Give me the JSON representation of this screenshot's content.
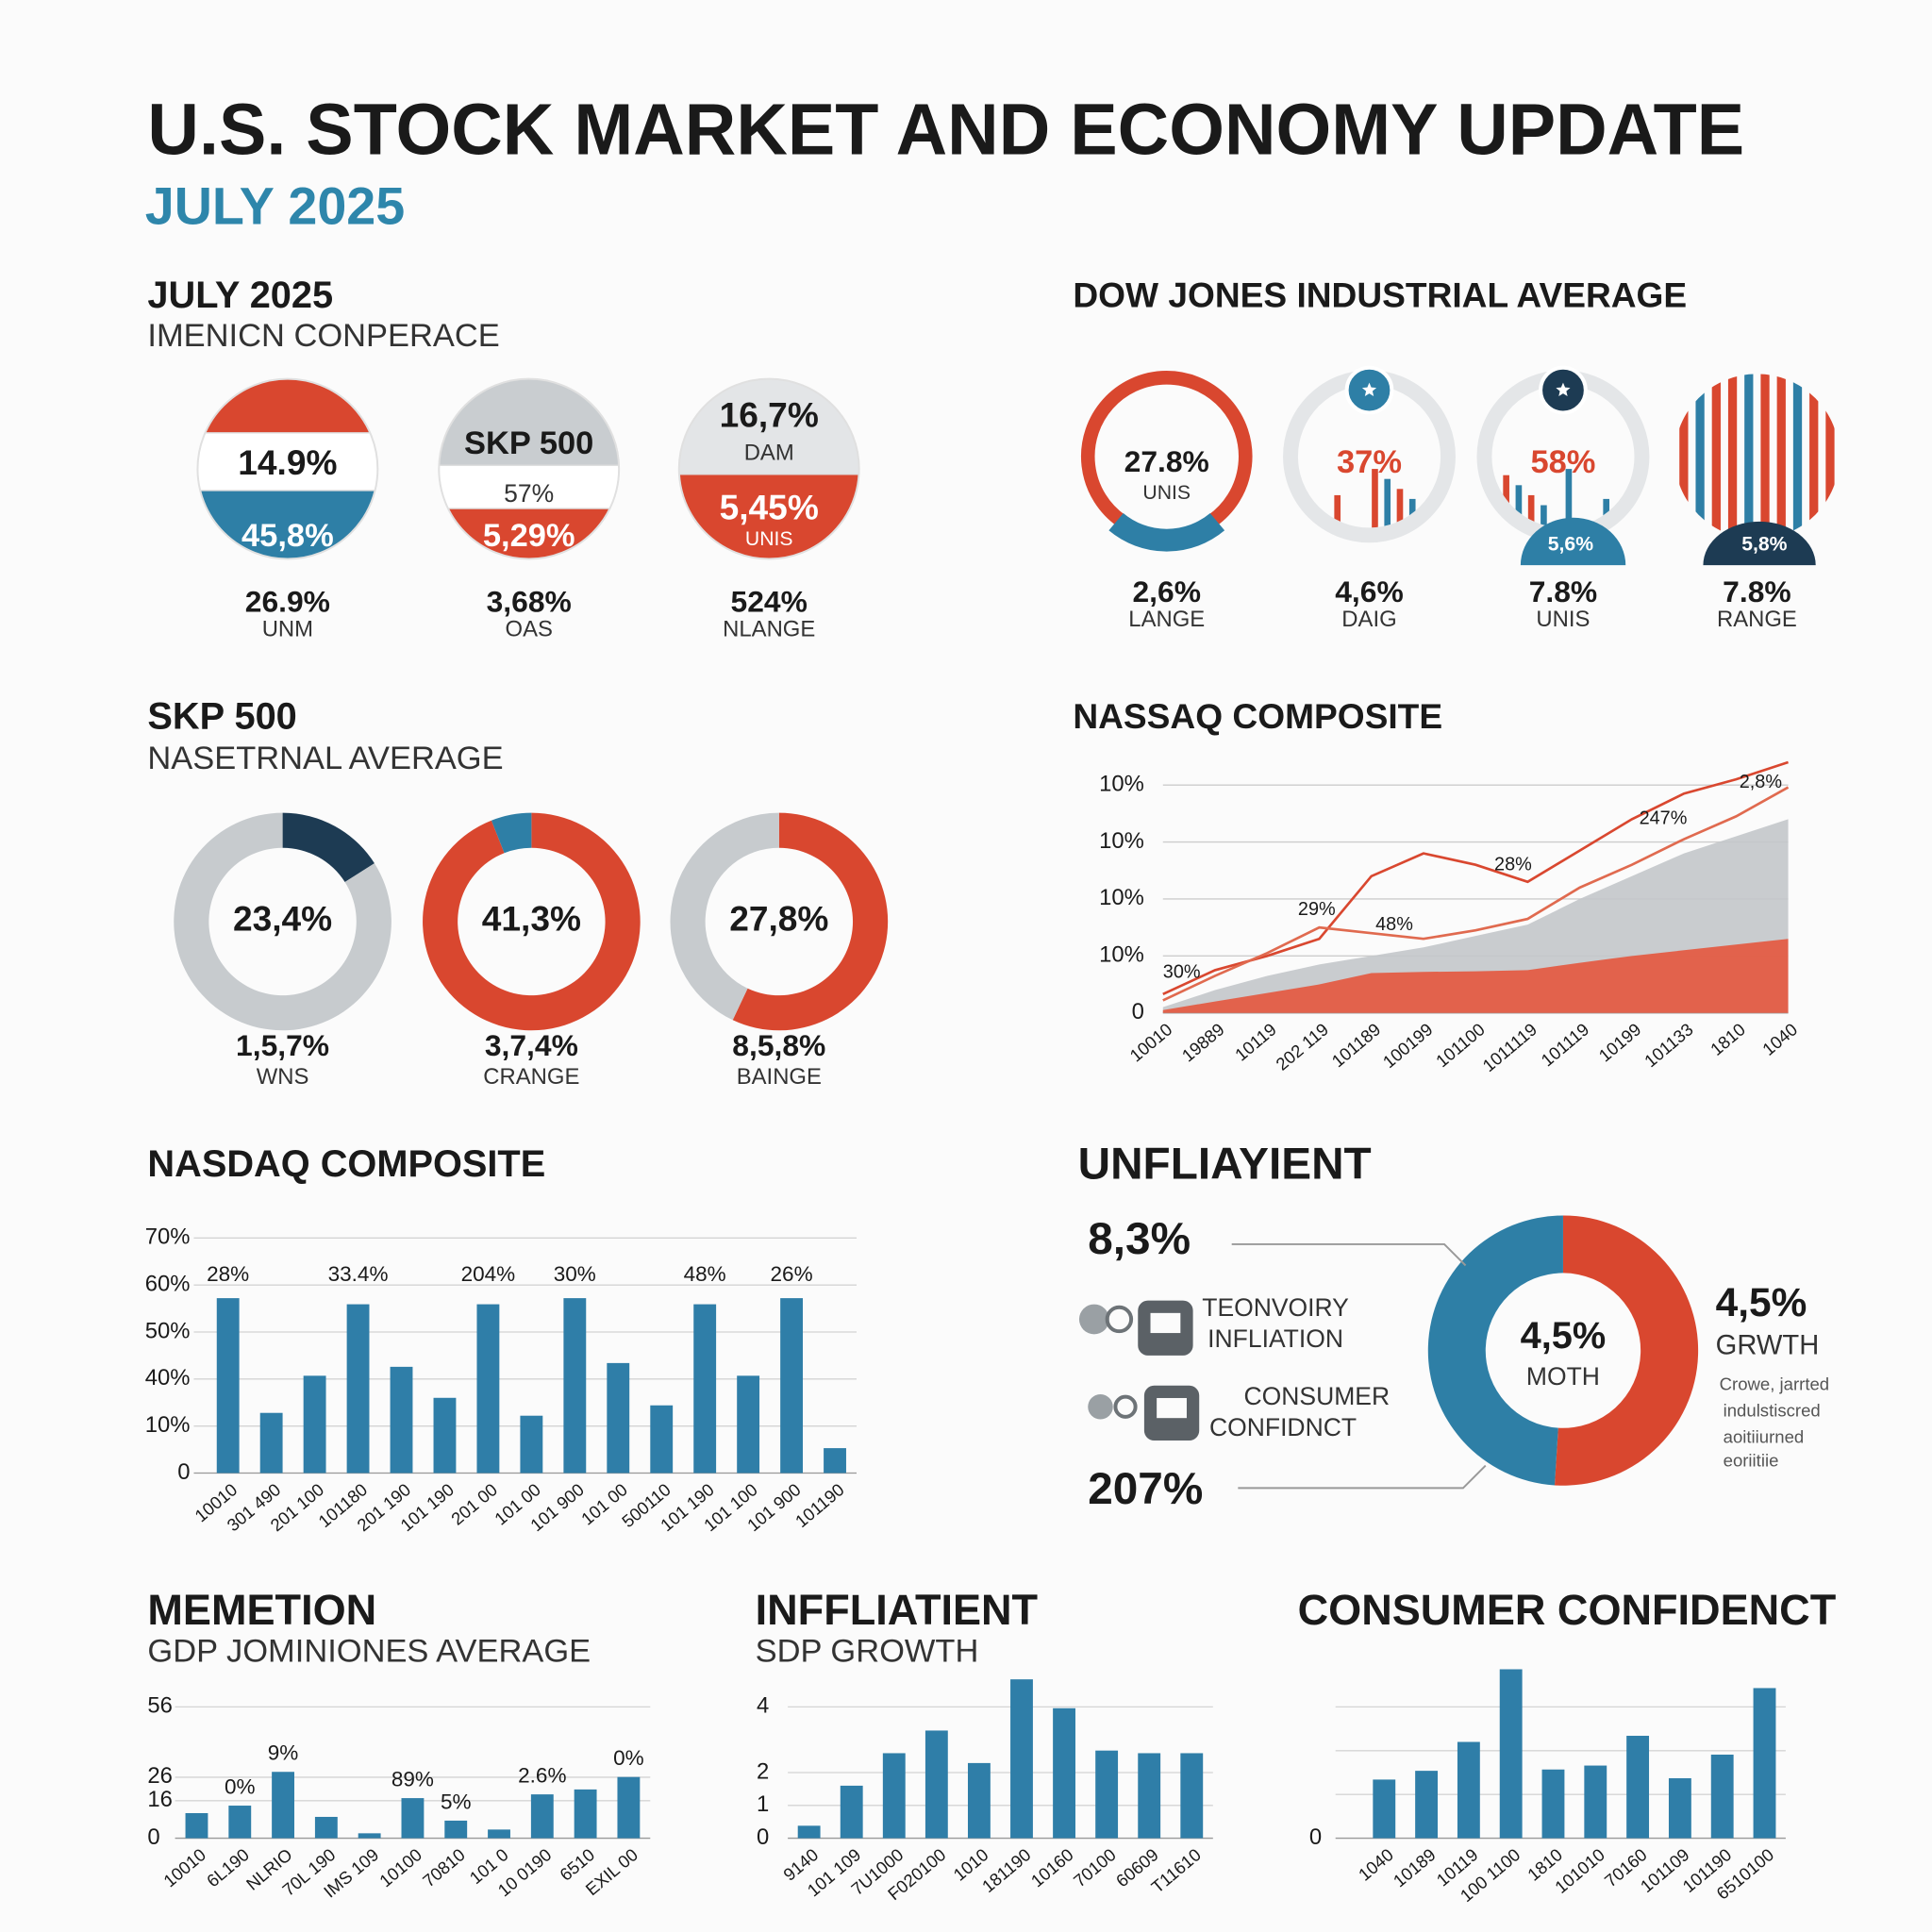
{
  "header": {
    "title": "U.S. STOCK MARKET AND ECONOMY UPDATE",
    "subtitle": "JULY 2025"
  },
  "chart_data": [
    {
      "type": "badges",
      "title": "JULY 2025",
      "subtitle": "IMENICN CONPERACE",
      "items": [
        {
          "texts": [
            "14.9%",
            "45,8%"
          ],
          "value": "26.9%",
          "label": "UNM",
          "colors": [
            "#d9472f",
            "#ffffff",
            "#2e7fa6"
          ]
        },
        {
          "texts": [
            "SKP 500",
            "57%",
            "5,29%"
          ],
          "value": "3,68%",
          "label": "OAS",
          "colors": [
            "#c9cdd0",
            "#ffffff",
            "#d9472f"
          ]
        },
        {
          "texts": [
            "16,7%",
            "DAM",
            "5,45%",
            "UNIS"
          ],
          "value": "524%",
          "label": "NLANGE",
          "colors": [
            "#e3e5e7",
            "#d9472f"
          ]
        }
      ]
    },
    {
      "type": "gauges",
      "title": "DOW JONES INDUSTRIAL AVERAGE",
      "items": [
        {
          "texts": [
            "27.8%",
            "UNIS"
          ],
          "value": "2,6%",
          "label": "LANGE"
        },
        {
          "texts": [
            "37%"
          ],
          "value": "4,6%",
          "label": "DAIG"
        },
        {
          "texts": [
            "58%",
            "5,6%"
          ],
          "value": "7.8%",
          "label": "UNIS"
        },
        {
          "texts": [
            "5,8%"
          ],
          "value": "7.8%",
          "label": "RANGE"
        }
      ]
    },
    {
      "type": "donut",
      "title": "SKP 500",
      "subtitle": "NASETRNAL AVERAGE",
      "items": [
        {
          "center": "23,4%",
          "value": "1,5,7%",
          "label": "WNS",
          "values": [
            16,
            84
          ],
          "colors": [
            "#1d3b53",
            "#c7cbce"
          ]
        },
        {
          "center": "41,3%",
          "value": "3,7,4%",
          "label": "CRANGE",
          "values": [
            94,
            6
          ],
          "colors": [
            "#d9472f",
            "#2e7fa6"
          ]
        },
        {
          "center": "27,8%",
          "value": "8,5,8%",
          "label": "BAINGE",
          "values": [
            57,
            43
          ],
          "colors": [
            "#d9472f",
            "#c7cbce"
          ]
        }
      ]
    },
    {
      "type": "line",
      "title": "NASSAQ COMPOSITE",
      "categories": [
        "10010",
        "19889",
        "10119",
        "202 119",
        "101189",
        "100199",
        "101100",
        "1011119",
        "101119",
        "10199",
        "101133",
        "1810",
        "1040"
      ],
      "ylim": [
        0,
        4.5
      ],
      "yticks": [
        0,
        {
          "value": 1,
          "label": "10%"
        },
        {
          "value": 2,
          "label": "10%"
        },
        {
          "value": 3,
          "label": "10%"
        },
        {
          "value": 4,
          "label": "10%"
        }
      ],
      "grid": true,
      "series": [
        {
          "style": "area",
          "color": "#c3c7ca",
          "values": [
            0.1,
            0.4,
            0.65,
            0.85,
            1.0,
            1.15,
            1.35,
            1.55,
            2.0,
            2.4,
            2.8,
            3.1,
            3.4
          ]
        },
        {
          "style": "area",
          "color": "#e4573d",
          "values": [
            0.05,
            0.2,
            0.35,
            0.5,
            0.7,
            0.72,
            0.73,
            0.75,
            0.88,
            1.0,
            1.1,
            1.2,
            1.3
          ]
        },
        {
          "style": "line",
          "color": "#d9472f",
          "values": [
            0.33,
            0.75,
            1.0,
            1.3,
            2.4,
            2.8,
            2.6,
            2.3,
            2.85,
            3.4,
            3.85,
            4.1,
            4.4
          ]
        },
        {
          "style": "line",
          "color": "#e06a4f",
          "values": [
            0.22,
            0.65,
            1.05,
            1.5,
            1.4,
            1.3,
            1.45,
            1.65,
            2.2,
            2.6,
            3.05,
            3.45,
            3.96
          ]
        }
      ],
      "annotations": [
        "30%",
        "29%",
        "48%",
        "28%",
        "247%",
        "2,8%"
      ]
    },
    {
      "type": "bar",
      "title": "NASDAQ COMPOSITE",
      "categories": [
        "10010",
        "301 490",
        "201 100",
        "101180",
        "201 190",
        "101 190",
        "201 00",
        "101 00",
        "101 900",
        "101 00",
        "500110",
        "101 190",
        "101 100",
        "101 900",
        "101190"
      ],
      "values": [
        3.72,
        1.28,
        2.07,
        3.59,
        2.26,
        1.6,
        3.59,
        1.22,
        3.72,
        2.34,
        1.44,
        3.59,
        2.07,
        3.72,
        0.53
      ],
      "color": "#2f7ea8",
      "ylim": [
        0,
        5
      ],
      "yticks": [
        0,
        {
          "value": 1,
          "label": "10%"
        },
        {
          "value": 2,
          "label": "40%"
        },
        {
          "value": 3,
          "label": "50%"
        },
        {
          "value": 4,
          "label": "60%"
        },
        {
          "value": 5,
          "label": "70%"
        }
      ],
      "grid": true,
      "annotations": [
        "28%",
        "33.4%",
        "204%",
        "30%",
        "48%",
        "26%"
      ]
    },
    {
      "type": "callout",
      "title": "UNFLIAYIENT",
      "values": [
        51,
        49
      ],
      "colors": [
        "#d9472f",
        "#2e7fa6"
      ],
      "center": [
        "4,5%",
        "MOTH"
      ],
      "callouts": [
        "8,3%",
        "207%"
      ],
      "legend": [
        [
          "TEONVOIRY",
          "INFLIATION"
        ],
        [
          "CONSUMER",
          "CONFIDNCT"
        ]
      ],
      "side_value": "4,5%",
      "side_label": "GRWTH",
      "note": [
        "Crowe, jarrted",
        "indulstiscred",
        "aoitiiurned",
        "eoriitiie"
      ]
    },
    {
      "type": "bar",
      "title": "MEMETION",
      "subtitle": "GDP JOMINIONES AVERAGE",
      "categories": [
        "10010",
        "6L190",
        "NLRIO",
        "70L 190",
        "IMS 109",
        "10100",
        "70810",
        "101 0",
        "10 0190",
        "6510",
        "EXIL 00"
      ],
      "values": [
        10.7,
        13.9,
        28.3,
        9.1,
        2.1,
        17.1,
        7.5,
        3.7,
        18.7,
        20.8,
        26.1
      ],
      "color": "#2f7ea8",
      "ylim": [
        0,
        56
      ],
      "yticks": [
        0,
        16,
        26,
        56
      ],
      "grid": true,
      "annotations": [
        "0%",
        "9%",
        "89%",
        "5%",
        "2.6%",
        "0%"
      ]
    },
    {
      "type": "bar",
      "title": "INFFLIATIENT",
      "subtitle": "SDP GROWTH",
      "categories": [
        "9140",
        "101 109",
        "7U1000",
        "F020100",
        "1010",
        "181190",
        "10160",
        "70100",
        "60609",
        "T11610"
      ],
      "values": [
        0.38,
        1.6,
        2.59,
        3.28,
        2.29,
        4.84,
        3.96,
        2.67,
        2.59,
        2.59
      ],
      "color": "#2f7ea8",
      "ylim": [
        0,
        5
      ],
      "yticks": [
        0,
        1,
        2,
        4
      ],
      "grid": true
    },
    {
      "type": "bar",
      "title": "CONSUMER CONFIDENCT",
      "categories": [
        "1040",
        "10189",
        "10119",
        "100 1100",
        "1810",
        "101010",
        "70160",
        "101109",
        "101190",
        "6510100"
      ],
      "values": [
        1.34,
        1.54,
        2.2,
        3.86,
        1.57,
        1.66,
        2.34,
        1.37,
        1.91,
        3.43
      ],
      "color": "#2f7ea8",
      "ylim": [
        0,
        4
      ],
      "yticks": [
        0,
        {
          "value": 1,
          "label": null
        },
        {
          "value": 2,
          "label": null
        },
        {
          "value": 3,
          "label": null
        }
      ],
      "grid": true
    }
  ]
}
